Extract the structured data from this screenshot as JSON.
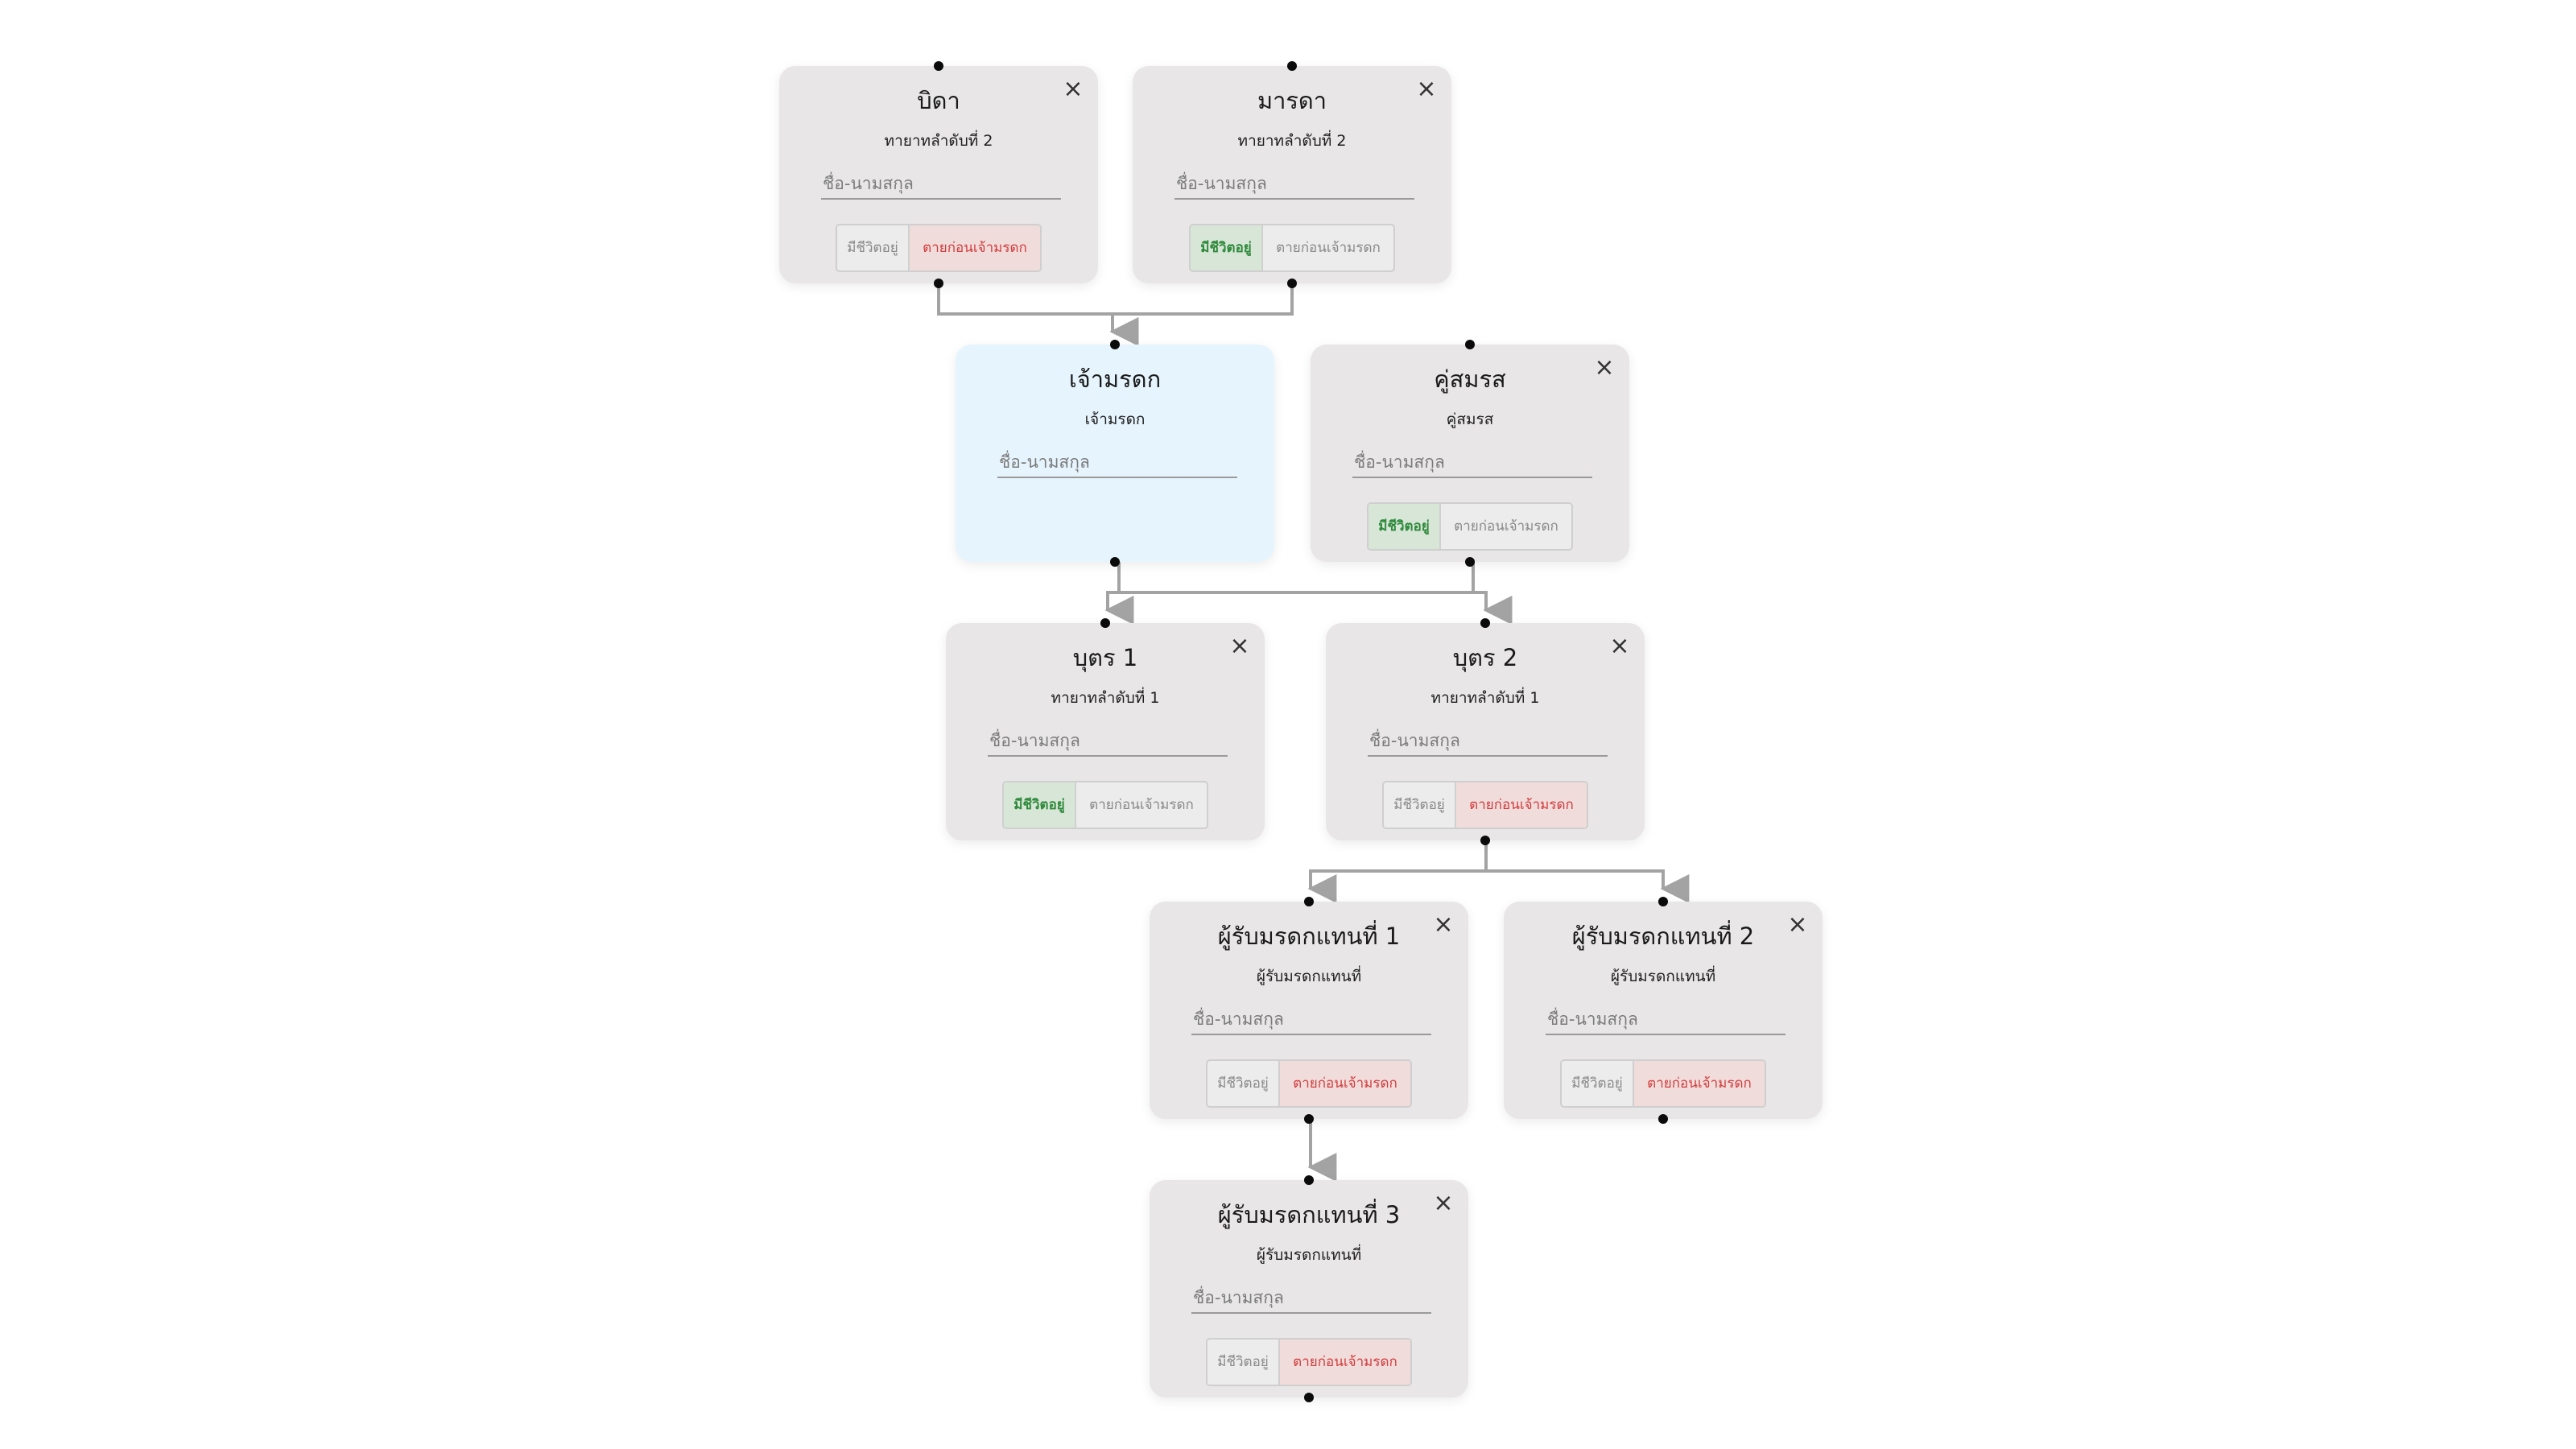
{
  "labels": {
    "name_placeholder": "ชื่อ-นามสกุล",
    "alive_line1": "มีชีวิต",
    "alive_line2": "อยู่",
    "dead": "ตายก่อนเจ้ามรดก",
    "close": "×"
  },
  "nodes": {
    "father": {
      "title": "บิดา",
      "role": "ทายาทลำดับที่ 2",
      "status": "dead"
    },
    "mother": {
      "title": "มารดา",
      "role": "ทายาทลำดับที่ 2",
      "status": "alive"
    },
    "owner": {
      "title": "เจ้ามรดก",
      "role": "เจ้ามรดก"
    },
    "spouse": {
      "title": "คู่สมรส",
      "role": "คู่สมรส",
      "status": "alive"
    },
    "child1": {
      "title": "บุตร 1",
      "role": "ทายาทลำดับที่ 1",
      "status": "alive"
    },
    "child2": {
      "title": "บุตร 2",
      "role": "ทายาทลำดับที่ 1",
      "status": "dead"
    },
    "rep1": {
      "title": "ผู้รับมรดกแทนที่ 1",
      "role": "ผู้รับมรดกแทนที่",
      "status": "dead"
    },
    "rep2": {
      "title": "ผู้รับมรดกแทนที่ 2",
      "role": "ผู้รับมรดกแทนที่",
      "status": "dead"
    },
    "rep3": {
      "title": "ผู้รับมรดกแทนที่ 3",
      "role": "ผู้รับมรดกแทนที่",
      "status": "dead"
    }
  },
  "colors": {
    "node_bg": "#e8e6e6",
    "owner_bg": "#e6f4fd",
    "edge": "#a3a3a3",
    "alive_active": "#2f8a3c",
    "dead_active": "#d23b3b"
  }
}
